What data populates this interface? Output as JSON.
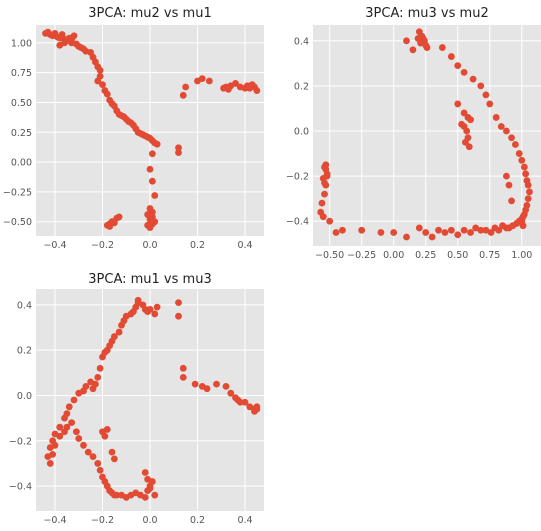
{
  "colors": {
    "panel_bg": "#e5e5e5",
    "grid": "#ffffff",
    "marker": "#e24a33"
  },
  "chart_data": [
    {
      "type": "scatter",
      "title": "3PCA: mu2 vs mu1",
      "xlabel": "",
      "ylabel": "",
      "xlim": [
        -0.48,
        0.48
      ],
      "ylim": [
        -0.62,
        1.15
      ],
      "xticks": [
        -0.4,
        -0.2,
        0.0,
        0.2,
        0.4
      ],
      "xtick_labels": [
        "−0.4",
        "−0.2",
        "0.0",
        "0.2",
        "0.4"
      ],
      "yticks": [
        -0.5,
        -0.25,
        0.0,
        0.25,
        0.5,
        0.75,
        1.0
      ],
      "ytick_labels": [
        "−0.50",
        "−0.25",
        "0.00",
        "0.25",
        "0.50",
        "0.75",
        "1.00"
      ],
      "grid": true,
      "x": [
        -0.44,
        -0.43,
        -0.42,
        -0.41,
        -0.4,
        -0.39,
        -0.38,
        -0.37,
        -0.36,
        -0.35,
        -0.33,
        -0.31,
        -0.3,
        -0.29,
        -0.28,
        -0.27,
        -0.25,
        -0.24,
        -0.23,
        -0.22,
        -0.21,
        -0.21,
        -0.22,
        -0.2,
        -0.19,
        -0.18,
        -0.17,
        -0.16,
        -0.15,
        -0.14,
        -0.13,
        -0.12,
        -0.11,
        -0.1,
        -0.09,
        -0.08,
        -0.07,
        -0.06,
        -0.05,
        -0.04,
        -0.03,
        -0.02,
        -0.01,
        0.0,
        0.01,
        0.02,
        0.03,
        0.01,
        0.0,
        0.01,
        0.02,
        0.0,
        0.01,
        -0.01,
        0.01,
        0.0,
        0.02,
        0.01,
        -0.01,
        0.0,
        -0.17,
        -0.16,
        -0.18,
        -0.14,
        -0.13,
        -0.15,
        -0.17,
        0.12,
        0.12,
        0.14,
        0.15,
        0.2,
        0.22,
        0.25,
        0.31,
        0.32,
        0.33,
        0.34,
        0.36,
        0.38,
        0.4,
        0.41,
        0.42,
        0.44,
        0.45,
        0.43,
        -0.32,
        -0.34,
        -0.35,
        -0.38,
        -0.36,
        -0.33
      ],
      "y": [
        1.08,
        1.09,
        1.07,
        1.06,
        1.08,
        1.05,
        1.04,
        1.07,
        1.03,
        1.02,
        1.0,
        0.99,
        0.97,
        0.96,
        0.95,
        0.93,
        0.92,
        0.88,
        0.84,
        0.8,
        0.77,
        0.72,
        0.68,
        0.65,
        0.6,
        0.57,
        0.52,
        0.49,
        0.47,
        0.43,
        0.4,
        0.39,
        0.38,
        0.36,
        0.34,
        0.33,
        0.31,
        0.28,
        0.25,
        0.24,
        0.23,
        0.22,
        0.21,
        0.2,
        0.18,
        0.16,
        0.15,
        0.07,
        -0.06,
        -0.16,
        -0.28,
        -0.39,
        -0.42,
        -0.44,
        -0.46,
        -0.48,
        -0.5,
        -0.52,
        -0.53,
        -0.55,
        -0.52,
        -0.5,
        -0.53,
        -0.47,
        -0.46,
        -0.51,
        -0.54,
        0.12,
        0.08,
        0.56,
        0.63,
        0.68,
        0.7,
        0.68,
        0.62,
        0.63,
        0.61,
        0.64,
        0.66,
        0.63,
        0.62,
        0.64,
        0.62,
        0.63,
        0.6,
        0.65,
        1.06,
        1.04,
        1.02,
        0.98,
        1.0,
        1.03
      ]
    },
    {
      "type": "scatter",
      "title": "3PCA: mu3 vs mu2",
      "xlabel": "",
      "ylabel": "",
      "xlim": [
        -0.63,
        1.15
      ],
      "ylim": [
        -0.51,
        0.47
      ],
      "xticks": [
        -0.5,
        -0.25,
        0.0,
        0.25,
        0.5,
        0.75,
        1.0
      ],
      "xtick_labels": [
        "−0.50",
        "−0.25",
        "0.00",
        "0.25",
        "0.50",
        "0.75",
        "1.00"
      ],
      "yticks": [
        -0.4,
        -0.2,
        0.0,
        0.2,
        0.4
      ],
      "ytick_labels": [
        "−0.4",
        "−0.2",
        "0.0",
        "0.2",
        "0.4"
      ],
      "grid": true,
      "x": [
        0.1,
        0.15,
        0.2,
        0.22,
        0.23,
        0.24,
        0.25,
        0.26,
        0.21,
        0.19,
        0.38,
        0.45,
        0.5,
        0.55,
        0.62,
        0.68,
        0.72,
        0.75,
        0.8,
        0.84,
        0.88,
        0.92,
        0.95,
        0.98,
        1.0,
        1.02,
        1.03,
        1.04,
        1.05,
        1.06,
        1.05,
        1.04,
        1.03,
        1.02,
        1.01,
        1.0,
        0.98,
        0.96,
        0.93,
        0.9,
        0.88,
        0.85,
        0.82,
        0.79,
        0.76,
        0.72,
        0.68,
        0.64,
        0.6,
        0.55,
        0.5,
        0.45,
        0.4,
        0.35,
        0.3,
        0.25,
        0.2,
        0.1,
        0.0,
        -0.1,
        -0.25,
        -0.4,
        -0.45,
        -0.5,
        -0.55,
        -0.57,
        -0.56,
        -0.54,
        -0.53,
        -0.52,
        -0.54,
        -0.55,
        -0.53,
        -0.52,
        -0.53,
        -0.54,
        0.55,
        0.57,
        0.58,
        0.56,
        0.59,
        0.6,
        0.58,
        0.55,
        0.5,
        0.53,
        0.88,
        0.9,
        0.92,
        1.0,
        1.01
      ],
      "y": [
        0.4,
        0.36,
        0.44,
        0.42,
        0.41,
        0.4,
        0.38,
        0.37,
        0.39,
        0.41,
        0.37,
        0.33,
        0.29,
        0.26,
        0.23,
        0.2,
        0.16,
        0.12,
        0.06,
        0.02,
        0.0,
        -0.03,
        -0.06,
        -0.1,
        -0.13,
        -0.16,
        -0.19,
        -0.22,
        -0.24,
        -0.27,
        -0.3,
        -0.33,
        -0.35,
        -0.37,
        -0.38,
        -0.39,
        -0.4,
        -0.41,
        -0.42,
        -0.43,
        -0.43,
        -0.42,
        -0.44,
        -0.43,
        -0.45,
        -0.44,
        -0.44,
        -0.43,
        -0.45,
        -0.44,
        -0.46,
        -0.44,
        -0.45,
        -0.44,
        -0.47,
        -0.45,
        -0.43,
        -0.47,
        -0.45,
        -0.45,
        -0.44,
        -0.44,
        -0.45,
        -0.4,
        -0.38,
        -0.36,
        -0.32,
        -0.28,
        -0.24,
        -0.2,
        -0.16,
        -0.21,
        -0.15,
        -0.19,
        -0.17,
        -0.23,
        0.02,
        0.0,
        -0.03,
        -0.05,
        -0.07,
        0.05,
        0.06,
        0.08,
        0.12,
        0.03,
        -0.2,
        -0.24,
        -0.31,
        -0.4,
        -0.42
      ]
    },
    {
      "type": "scatter",
      "title": "3PCA: mu1 vs mu3",
      "xlabel": "",
      "ylabel": "",
      "xlim": [
        -0.48,
        0.48
      ],
      "ylim": [
        -0.51,
        0.47
      ],
      "xticks": [
        -0.4,
        -0.2,
        0.0,
        0.2,
        0.4
      ],
      "xtick_labels": [
        "−0.4",
        "−0.2",
        "0.0",
        "0.2",
        "0.4"
      ],
      "yticks": [
        -0.4,
        -0.2,
        0.0,
        0.2,
        0.4
      ],
      "ytick_labels": [
        "−0.4",
        "−0.2",
        "0.0",
        "0.2",
        "0.4"
      ],
      "grid": true,
      "x": [
        -0.06,
        -0.05,
        -0.03,
        -0.02,
        -0.01,
        0.0,
        0.02,
        0.03,
        -0.05,
        -0.07,
        -0.08,
        -0.1,
        -0.11,
        -0.12,
        -0.13,
        -0.15,
        -0.16,
        -0.17,
        -0.18,
        -0.19,
        -0.2,
        -0.21,
        -0.22,
        -0.23,
        -0.24,
        -0.25,
        -0.27,
        -0.28,
        -0.3,
        -0.32,
        -0.34,
        -0.35,
        -0.36,
        -0.38,
        -0.4,
        -0.41,
        -0.42,
        -0.43,
        -0.42,
        -0.41,
        -0.4,
        -0.38,
        -0.36,
        -0.35,
        -0.33,
        -0.31,
        -0.3,
        -0.28,
        -0.26,
        -0.24,
        -0.22,
        -0.21,
        -0.2,
        -0.19,
        -0.18,
        -0.17,
        -0.16,
        -0.15,
        -0.14,
        -0.12,
        -0.1,
        -0.08,
        -0.06,
        -0.04,
        -0.02,
        -0.01,
        0.0,
        0.01,
        0.02,
        0.0,
        -0.01,
        -0.02,
        -0.19,
        -0.18,
        -0.2,
        -0.16,
        -0.15,
        0.12,
        0.12,
        0.14,
        0.14,
        0.19,
        0.22,
        0.24,
        0.28,
        0.32,
        0.34,
        0.36,
        0.37,
        0.38,
        0.4,
        0.42,
        0.44,
        0.45,
        0.45,
        0.44
      ],
      "y": [
        0.39,
        0.42,
        0.4,
        0.38,
        0.37,
        0.38,
        0.36,
        0.39,
        0.41,
        0.37,
        0.36,
        0.35,
        0.33,
        0.31,
        0.28,
        0.26,
        0.24,
        0.22,
        0.2,
        0.19,
        0.17,
        0.12,
        0.08,
        0.05,
        0.03,
        0.06,
        0.04,
        0.02,
        0.01,
        -0.02,
        -0.05,
        -0.08,
        -0.1,
        -0.14,
        -0.17,
        -0.2,
        -0.23,
        -0.27,
        -0.3,
        -0.26,
        -0.22,
        -0.18,
        -0.16,
        -0.14,
        -0.12,
        -0.16,
        -0.19,
        -0.22,
        -0.25,
        -0.27,
        -0.3,
        -0.33,
        -0.36,
        -0.38,
        -0.4,
        -0.42,
        -0.43,
        -0.44,
        -0.44,
        -0.44,
        -0.45,
        -0.44,
        -0.43,
        -0.44,
        -0.45,
        -0.42,
        -0.4,
        -0.38,
        -0.44,
        -0.41,
        -0.37,
        -0.34,
        -0.18,
        -0.15,
        -0.16,
        -0.25,
        -0.28,
        0.41,
        0.35,
        0.08,
        0.12,
        0.05,
        0.04,
        0.03,
        0.05,
        0.04,
        0.01,
        -0.01,
        -0.02,
        -0.03,
        -0.03,
        -0.05,
        -0.06,
        -0.05,
        -0.06,
        -0.07
      ]
    }
  ]
}
